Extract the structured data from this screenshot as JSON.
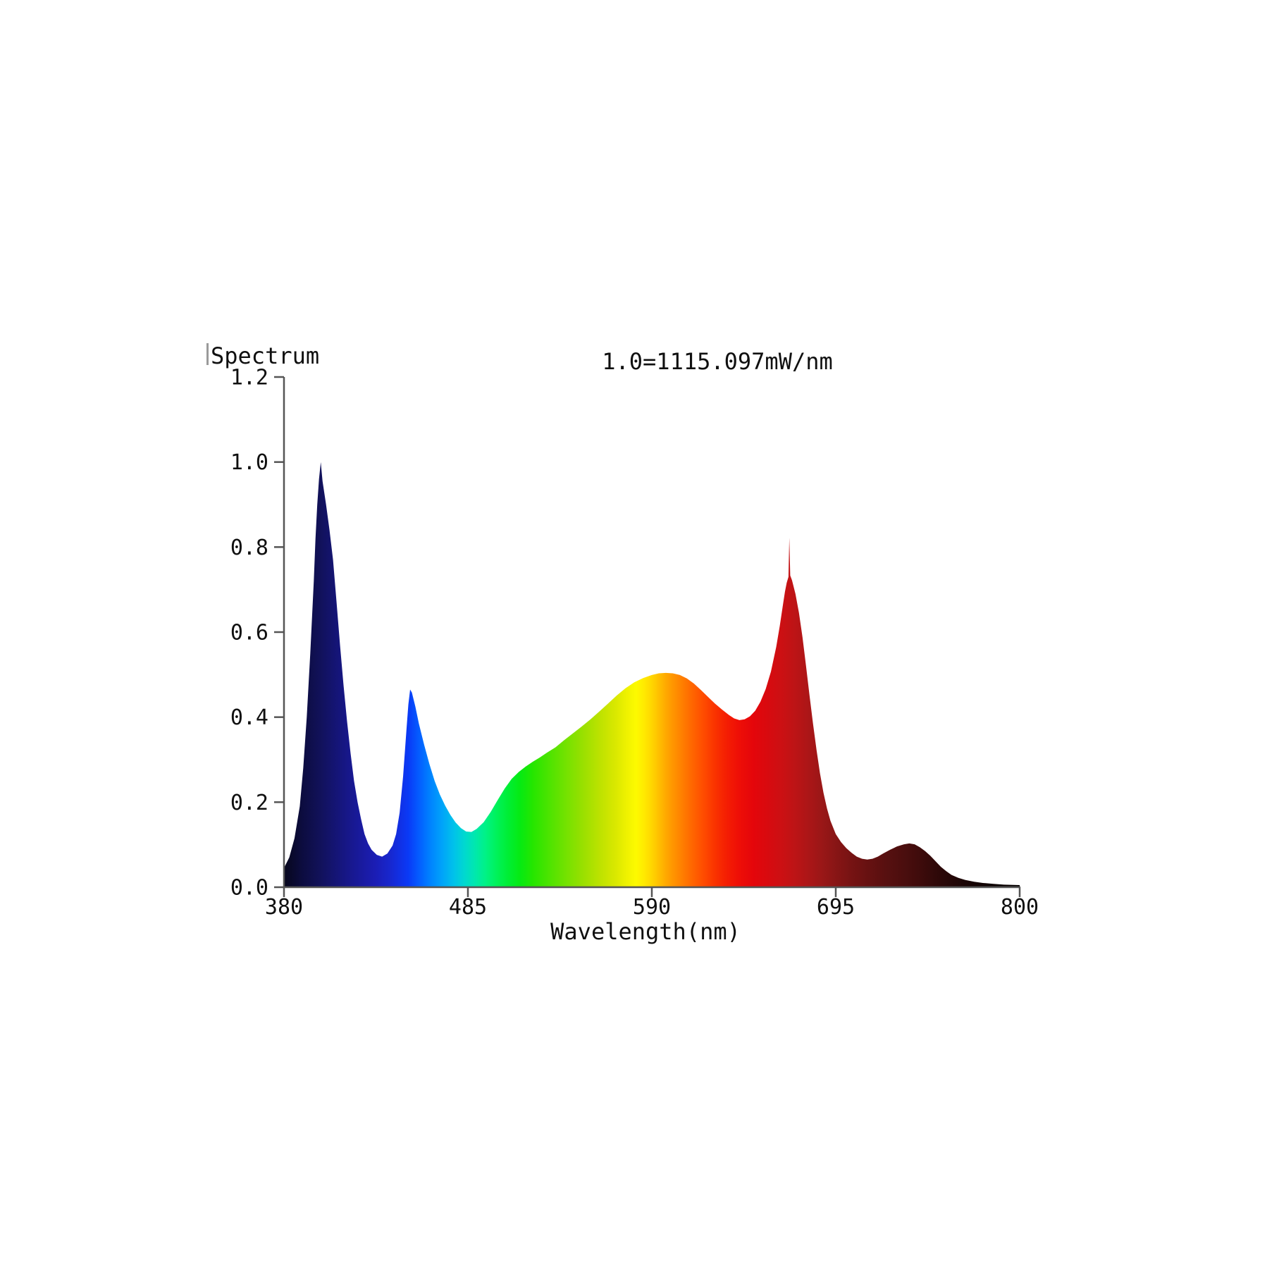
{
  "chart_data": {
    "type": "area",
    "title": "Spectrum",
    "annotation": "1.0=1115.097mW/nm",
    "xlabel": "Wavelength(nm)",
    "ylabel": "",
    "xlim": [
      380,
      800
    ],
    "ylim": [
      0,
      1.2
    ],
    "grid": false,
    "legend": "none",
    "x_ticks": [
      380,
      485,
      590,
      695,
      800
    ],
    "x_tick_labels": [
      "380",
      "485",
      "590",
      "695",
      "800"
    ],
    "y_ticks": [
      0.0,
      0.2,
      0.4,
      0.6,
      0.8,
      1.0,
      1.2
    ],
    "y_tick_labels": [
      "0.0",
      "0.2",
      "0.4",
      "0.6",
      "0.8",
      "1.0",
      "1.2"
    ],
    "axis_color": "#555555",
    "label_color": "#101010",
    "fill_style": "spectral-gradient",
    "points": [
      [
        380,
        0.045
      ],
      [
        383,
        0.07
      ],
      [
        386,
        0.115
      ],
      [
        389,
        0.19
      ],
      [
        391,
        0.28
      ],
      [
        393,
        0.4
      ],
      [
        395,
        0.55
      ],
      [
        397,
        0.72
      ],
      [
        398,
        0.82
      ],
      [
        399,
        0.9
      ],
      [
        400,
        0.96
      ],
      [
        401,
        1.0
      ],
      [
        402,
        0.955
      ],
      [
        404,
        0.9
      ],
      [
        406,
        0.84
      ],
      [
        408,
        0.77
      ],
      [
        410,
        0.67
      ],
      [
        412,
        0.57
      ],
      [
        414,
        0.475
      ],
      [
        416,
        0.39
      ],
      [
        418,
        0.315
      ],
      [
        420,
        0.25
      ],
      [
        422,
        0.2
      ],
      [
        424,
        0.16
      ],
      [
        426,
        0.125
      ],
      [
        428,
        0.103
      ],
      [
        430,
        0.088
      ],
      [
        433,
        0.076
      ],
      [
        436,
        0.072
      ],
      [
        439,
        0.079
      ],
      [
        442,
        0.098
      ],
      [
        444,
        0.125
      ],
      [
        446,
        0.175
      ],
      [
        448,
        0.26
      ],
      [
        450,
        0.375
      ],
      [
        451,
        0.43
      ],
      [
        452,
        0.465
      ],
      [
        453,
        0.458
      ],
      [
        455,
        0.425
      ],
      [
        457,
        0.385
      ],
      [
        460,
        0.335
      ],
      [
        463,
        0.29
      ],
      [
        466,
        0.25
      ],
      [
        469,
        0.218
      ],
      [
        472,
        0.192
      ],
      [
        475,
        0.17
      ],
      [
        478,
        0.152
      ],
      [
        481,
        0.139
      ],
      [
        484,
        0.131
      ],
      [
        487,
        0.13
      ],
      [
        490,
        0.137
      ],
      [
        494,
        0.153
      ],
      [
        498,
        0.177
      ],
      [
        502,
        0.205
      ],
      [
        506,
        0.232
      ],
      [
        510,
        0.255
      ],
      [
        514,
        0.271
      ],
      [
        518,
        0.284
      ],
      [
        522,
        0.295
      ],
      [
        526,
        0.305
      ],
      [
        530,
        0.316
      ],
      [
        535,
        0.329
      ],
      [
        540,
        0.346
      ],
      [
        545,
        0.362
      ],
      [
        550,
        0.378
      ],
      [
        555,
        0.395
      ],
      [
        560,
        0.413
      ],
      [
        565,
        0.432
      ],
      [
        570,
        0.451
      ],
      [
        575,
        0.468
      ],
      [
        580,
        0.482
      ],
      [
        585,
        0.492
      ],
      [
        590,
        0.499
      ],
      [
        594,
        0.503
      ],
      [
        598,
        0.504
      ],
      [
        602,
        0.503
      ],
      [
        606,
        0.499
      ],
      [
        610,
        0.491
      ],
      [
        614,
        0.479
      ],
      [
        618,
        0.464
      ],
      [
        622,
        0.448
      ],
      [
        626,
        0.432
      ],
      [
        630,
        0.418
      ],
      [
        634,
        0.405
      ],
      [
        637,
        0.397
      ],
      [
        640,
        0.393
      ],
      [
        643,
        0.395
      ],
      [
        646,
        0.402
      ],
      [
        649,
        0.415
      ],
      [
        652,
        0.436
      ],
      [
        655,
        0.466
      ],
      [
        658,
        0.507
      ],
      [
        661,
        0.565
      ],
      [
        663,
        0.614
      ],
      [
        665,
        0.668
      ],
      [
        666,
        0.695
      ],
      [
        667,
        0.716
      ],
      [
        668,
        0.73
      ],
      [
        668.5,
        0.822
      ],
      [
        669,
        0.733
      ],
      [
        670,
        0.722
      ],
      [
        672,
        0.69
      ],
      [
        674,
        0.645
      ],
      [
        676,
        0.588
      ],
      [
        678,
        0.522
      ],
      [
        680,
        0.452
      ],
      [
        682,
        0.385
      ],
      [
        684,
        0.323
      ],
      [
        686,
        0.268
      ],
      [
        688,
        0.222
      ],
      [
        690,
        0.185
      ],
      [
        692,
        0.156
      ],
      [
        695,
        0.125
      ],
      [
        698,
        0.106
      ],
      [
        701,
        0.092
      ],
      [
        704,
        0.081
      ],
      [
        707,
        0.072
      ],
      [
        710,
        0.067
      ],
      [
        713,
        0.065
      ],
      [
        716,
        0.067
      ],
      [
        719,
        0.072
      ],
      [
        722,
        0.079
      ],
      [
        726,
        0.088
      ],
      [
        730,
        0.096
      ],
      [
        734,
        0.101
      ],
      [
        737,
        0.103
      ],
      [
        740,
        0.101
      ],
      [
        743,
        0.094
      ],
      [
        746,
        0.085
      ],
      [
        749,
        0.074
      ],
      [
        752,
        0.061
      ],
      [
        755,
        0.048
      ],
      [
        758,
        0.038
      ],
      [
        761,
        0.029
      ],
      [
        765,
        0.022
      ],
      [
        769,
        0.017
      ],
      [
        774,
        0.013
      ],
      [
        779,
        0.01
      ],
      [
        785,
        0.008
      ],
      [
        791,
        0.006
      ],
      [
        800,
        0.005
      ]
    ],
    "gradient_stops": [
      [
        380,
        "#07071c"
      ],
      [
        390,
        "#0c0c3e"
      ],
      [
        400,
        "#111158"
      ],
      [
        408,
        "#141470"
      ],
      [
        416,
        "#171788"
      ],
      [
        424,
        "#191a9e"
      ],
      [
        432,
        "#1b1db4"
      ],
      [
        440,
        "#1826cc"
      ],
      [
        446,
        "#1130e4"
      ],
      [
        451,
        "#0a3af6"
      ],
      [
        457,
        "#045cff"
      ],
      [
        463,
        "#0080ff"
      ],
      [
        470,
        "#00a2fa"
      ],
      [
        477,
        "#00c2ea"
      ],
      [
        483,
        "#00d8d0"
      ],
      [
        489,
        "#00e8ae"
      ],
      [
        495,
        "#00f286"
      ],
      [
        501,
        "#00f25c"
      ],
      [
        508,
        "#00ee34"
      ],
      [
        515,
        "#06ea12"
      ],
      [
        522,
        "#25e600"
      ],
      [
        530,
        "#47e400"
      ],
      [
        540,
        "#70e200"
      ],
      [
        550,
        "#97e000"
      ],
      [
        560,
        "#bce200"
      ],
      [
        569,
        "#d9e800"
      ],
      [
        576,
        "#f0f200"
      ],
      [
        581,
        "#fdfa00"
      ],
      [
        586,
        "#ffe800"
      ],
      [
        591,
        "#ffd000"
      ],
      [
        596,
        "#ffb400"
      ],
      [
        601,
        "#ff9a00"
      ],
      [
        607,
        "#ff8000"
      ],
      [
        613,
        "#ff6600"
      ],
      [
        619,
        "#ff4e00"
      ],
      [
        626,
        "#fa3300"
      ],
      [
        633,
        "#f41d03"
      ],
      [
        640,
        "#ee0e07"
      ],
      [
        648,
        "#e4060b"
      ],
      [
        656,
        "#d80a0f"
      ],
      [
        664,
        "#cc1013"
      ],
      [
        672,
        "#bc1416"
      ],
      [
        680,
        "#aa1617"
      ],
      [
        688,
        "#981717"
      ],
      [
        696,
        "#861515"
      ],
      [
        704,
        "#761313"
      ],
      [
        714,
        "#661111"
      ],
      [
        724,
        "#571010"
      ],
      [
        734,
        "#4b0e0e"
      ],
      [
        744,
        "#3d0b0b"
      ],
      [
        752,
        "#300909"
      ],
      [
        760,
        "#250707"
      ],
      [
        768,
        "#1b0505"
      ],
      [
        776,
        "#140404"
      ],
      [
        786,
        "#0d0303"
      ],
      [
        800,
        "#070202"
      ]
    ]
  }
}
